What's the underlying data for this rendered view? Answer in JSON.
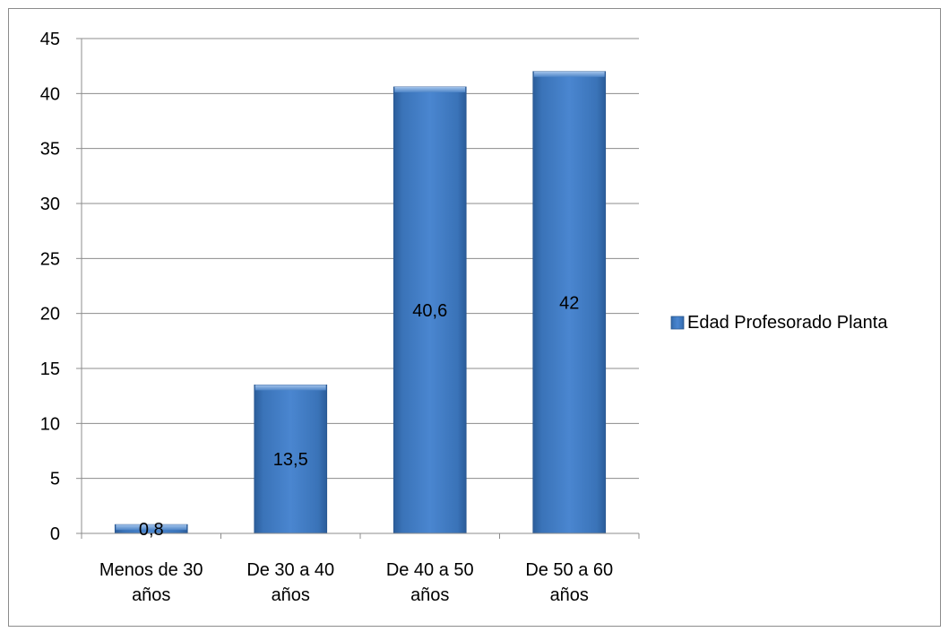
{
  "chart_data": {
    "type": "bar",
    "categories": [
      [
        "Menos de 30",
        "años"
      ],
      [
        "De 30 a 40",
        "años"
      ],
      [
        "De 40 a 50",
        "años"
      ],
      [
        "De 50 a 60",
        "años"
      ]
    ],
    "series": [
      {
        "name": "Edad Profesorado Planta",
        "values": [
          0.8,
          13.5,
          40.6,
          42
        ],
        "labels": [
          "0,8",
          "13,5",
          "40,6",
          "42"
        ],
        "color": "#4f81bd"
      }
    ],
    "ylim": [
      0,
      45
    ],
    "yticks": [
      0,
      5,
      10,
      15,
      20,
      25,
      30,
      35,
      40,
      45
    ],
    "grid": true,
    "legend": "right",
    "title": "",
    "xlabel": "",
    "ylabel": ""
  }
}
